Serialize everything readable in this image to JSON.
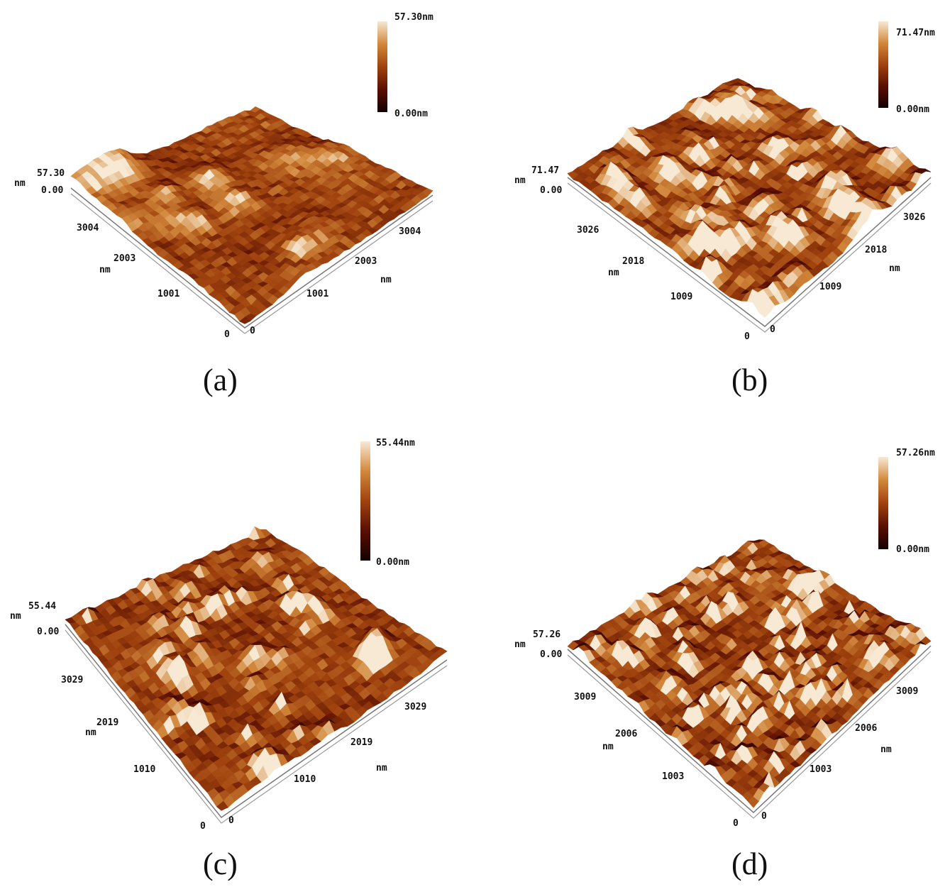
{
  "panels": [
    {
      "caption": "(a)",
      "colorbar": {
        "max_label": "57.30nm",
        "min_label": "0.00nm"
      },
      "z_axis": {
        "unit": "nm",
        "max_label": "57.30",
        "min_label": "0.00"
      },
      "left_axis": {
        "unit": "nm",
        "ticks": [
          "3004",
          "2003",
          "1001",
          "0"
        ]
      },
      "right_axis": {
        "unit": "nm",
        "ticks": [
          "0",
          "1001",
          "2003",
          "3004"
        ]
      },
      "surface": {
        "features": "blob",
        "seed": 11,
        "tilt": "flat"
      }
    },
    {
      "caption": "(b)",
      "colorbar": {
        "max_label": "71.47nm",
        "min_label": "0.00nm"
      },
      "z_axis": {
        "unit": "nm",
        "max_label": "71.47",
        "min_label": "0.00"
      },
      "left_axis": {
        "unit": "nm",
        "ticks": [
          "3026",
          "2018",
          "1009",
          "0"
        ]
      },
      "right_axis": {
        "unit": "nm",
        "ticks": [
          "0",
          "1009",
          "2018",
          "3026"
        ]
      },
      "surface": {
        "features": "rough",
        "seed": 23,
        "tilt": "flat"
      }
    },
    {
      "caption": "(c)",
      "colorbar": {
        "max_label": "55.44nm",
        "min_label": "0.00nm"
      },
      "z_axis": {
        "unit": "nm",
        "max_label": "55.44",
        "min_label": "0.00"
      },
      "left_axis": {
        "unit": "nm",
        "ticks": [
          "3029",
          "2019",
          "1010",
          "0"
        ]
      },
      "right_axis": {
        "unit": "nm",
        "ticks": [
          "0",
          "1010",
          "2019",
          "3029"
        ]
      },
      "surface": {
        "features": "peaks",
        "seed": 37,
        "tilt": "steep"
      }
    },
    {
      "caption": "(d)",
      "colorbar": {
        "max_label": "57.26nm",
        "min_label": "0.00nm"
      },
      "z_axis": {
        "unit": "nm",
        "max_label": "57.26",
        "min_label": "0.00"
      },
      "left_axis": {
        "unit": "nm",
        "ticks": [
          "3009",
          "2006",
          "1003",
          "0"
        ]
      },
      "right_axis": {
        "unit": "nm",
        "ticks": [
          "0",
          "1003",
          "2006",
          "3009"
        ]
      },
      "surface": {
        "features": "fine",
        "seed": 53,
        "tilt": "flat"
      }
    }
  ],
  "colors": {
    "colorbar_gradient": [
      "#140000",
      "#5a0f02",
      "#a0430e",
      "#d2883c",
      "#f7e9d4"
    ],
    "surface_dark": "#4a1500",
    "surface_mid": "#a14a12",
    "surface_high": "#f3ddb8"
  }
}
